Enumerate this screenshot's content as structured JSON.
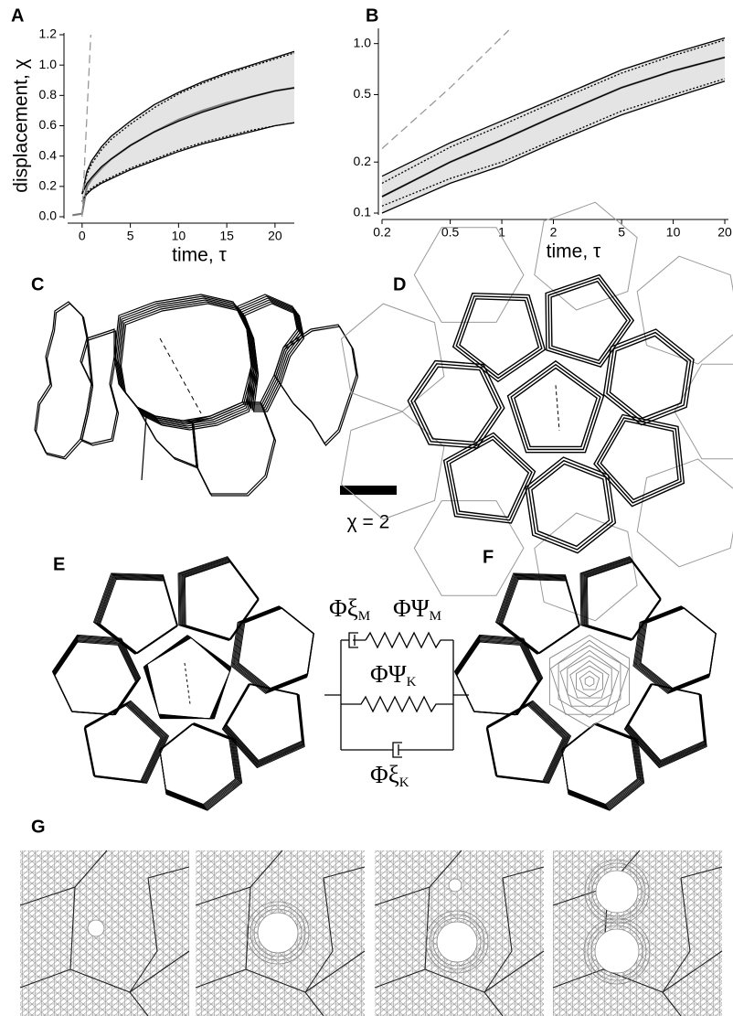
{
  "chart_data": [
    {
      "type": "line",
      "panel": "A",
      "xlabel": "time, τ",
      "ylabel": "displacement, χ",
      "xlim": [
        -1.5,
        22
      ],
      "ylim": [
        0,
        1.2
      ],
      "xticks": [
        0,
        5,
        10,
        15,
        20
      ],
      "yticks": [
        {
          "value": 0,
          "label": "0.0"
        },
        0.2,
        0.4,
        0.6,
        0.8,
        {
          "value": 1,
          "label": "1.0"
        },
        1.2
      ],
      "band_color": "#e4e4e4",
      "x": [
        -1,
        0,
        0.5,
        1,
        2,
        3,
        5,
        7.5,
        10,
        12.5,
        15,
        17.5,
        20,
        22
      ],
      "series": [
        {
          "color": "#000000",
          "style": "solid",
          "band": true,
          "values": [
            null,
            0.15,
            0.3,
            0.37,
            0.46,
            0.53,
            0.63,
            0.74,
            0.82,
            0.89,
            0.95,
            1.0,
            1.05,
            1.09
          ]
        },
        {
          "color": "#000000",
          "style": "solid",
          "band": true,
          "values": [
            null,
            0.1,
            0.15,
            0.18,
            0.22,
            0.25,
            0.31,
            0.37,
            0.43,
            0.48,
            0.52,
            0.56,
            0.6,
            0.62
          ]
        },
        {
          "color": "#7a7a7a",
          "style": "noisy",
          "values": [
            0.01,
            0.02,
            0.2,
            0.25,
            0.32,
            0.38,
            0.47,
            0.56,
            0.64,
            0.7,
            0.75,
            0.79,
            0.83,
            0.85
          ]
        },
        {
          "color": "#000000",
          "style": "solid",
          "values": [
            null,
            0.15,
            0.22,
            0.26,
            0.33,
            0.38,
            0.47,
            0.56,
            0.63,
            0.69,
            0.74,
            0.79,
            0.83,
            0.85
          ]
        },
        {
          "color": "#000000",
          "style": "dotted",
          "values": [
            null,
            0.15,
            0.28,
            0.35,
            0.44,
            0.51,
            0.61,
            0.72,
            0.81,
            0.88,
            0.94,
            0.99,
            1.04,
            1.08
          ]
        },
        {
          "color": "#000000",
          "style": "dotted",
          "values": [
            null,
            0.1,
            0.16,
            0.19,
            0.23,
            0.26,
            0.32,
            0.38,
            0.44,
            0.49,
            0.53,
            0.57,
            0.6,
            0.62
          ]
        },
        {
          "color": "#999999",
          "style": "dashed",
          "x": [
            0,
            0.9
          ],
          "values": [
            0,
            1.2
          ]
        }
      ]
    },
    {
      "type": "line",
      "panel": "B",
      "xlabel": "time, τ",
      "xlog": true,
      "ylog": true,
      "xlim": [
        0.2,
        21
      ],
      "ylim": [
        0.1,
        1.2
      ],
      "xticks": [
        0.2,
        0.5,
        1,
        2,
        5,
        10,
        20
      ],
      "yticks": [
        0.1,
        0.2,
        0.5,
        {
          "value": 1,
          "label": "1.0"
        }
      ],
      "band_color": "#e4e4e4",
      "x": [
        0.2,
        0.5,
        1,
        2,
        5,
        10,
        20
      ],
      "series": [
        {
          "color": "#000000",
          "style": "solid",
          "band": true,
          "values": [
            0.165,
            0.26,
            0.35,
            0.47,
            0.7,
            0.88,
            1.08
          ]
        },
        {
          "color": "#000000",
          "style": "solid",
          "band": true,
          "values": [
            0.1,
            0.15,
            0.19,
            0.26,
            0.38,
            0.48,
            0.6
          ]
        },
        {
          "color": "#7a7a7a",
          "style": "noisy",
          "values": [
            0.125,
            0.2,
            0.27,
            0.37,
            0.55,
            0.69,
            0.83
          ]
        },
        {
          "color": "#000000",
          "style": "solid",
          "values": [
            0.125,
            0.2,
            0.27,
            0.37,
            0.55,
            0.69,
            0.83
          ]
        },
        {
          "color": "#000000",
          "style": "dotted",
          "values": [
            0.15,
            0.245,
            0.33,
            0.45,
            0.67,
            0.85,
            1.05
          ]
        },
        {
          "color": "#000000",
          "style": "dotted",
          "values": [
            0.11,
            0.16,
            0.2,
            0.27,
            0.4,
            0.5,
            0.62
          ]
        },
        {
          "color": "#999999",
          "style": "dashed",
          "x": [
            0.2,
            0.5,
            1.1
          ],
          "values": [
            0.24,
            0.55,
            1.2
          ]
        }
      ]
    }
  ],
  "panels": {
    "c": {
      "label": "C",
      "scale_label": "χ = 2"
    },
    "d": {
      "label": "D"
    },
    "e": {
      "label": "E",
      "elements": [
        {
          "symbol": "Φξ",
          "sub": "M"
        },
        {
          "symbol": "ΦΨ",
          "sub": "M"
        },
        {
          "symbol": "ΦΨ",
          "sub": "K"
        },
        {
          "symbol": "Φξ",
          "sub": "K"
        }
      ]
    },
    "f": {
      "label": "F"
    },
    "g": {
      "label": "G"
    }
  }
}
